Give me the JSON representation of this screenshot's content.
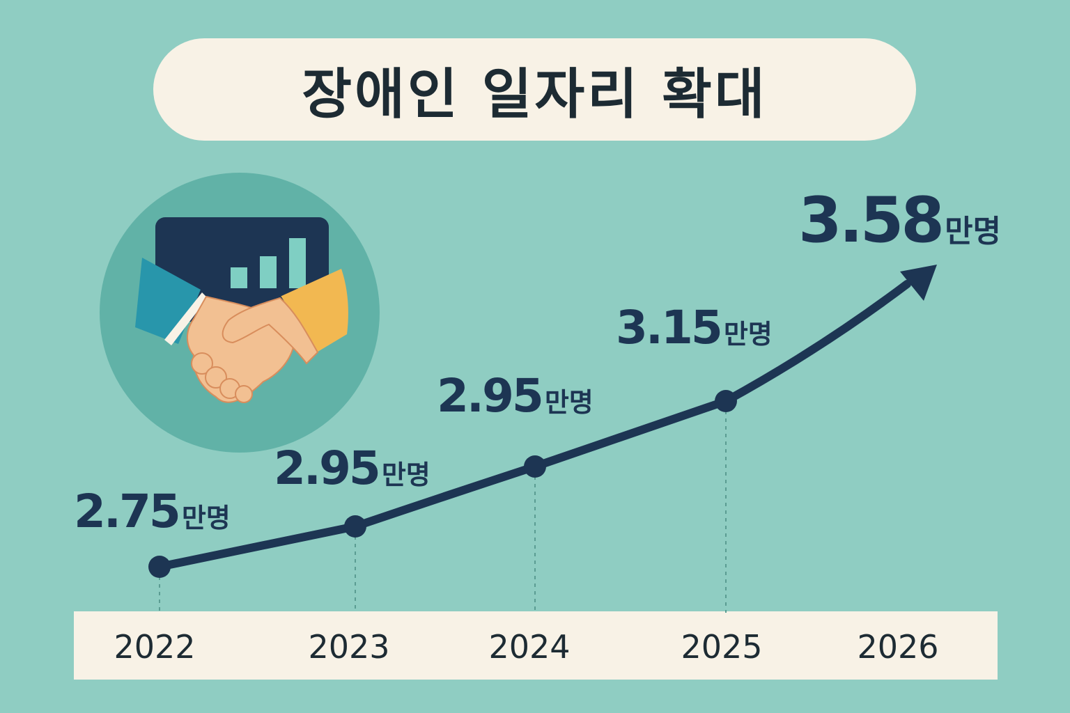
{
  "chart_data": {
    "type": "line",
    "title": "장애인 일자리 확대",
    "categories": [
      "2022",
      "2023",
      "2024",
      "2025",
      "2026"
    ],
    "series": [
      {
        "values": [
          2.75,
          2.95,
          2.95,
          3.15,
          3.58
        ]
      }
    ],
    "data_labels": [
      {
        "number": "2.75",
        "unit": "만명"
      },
      {
        "number": "2.95",
        "unit": "만명"
      },
      {
        "number": "2.95",
        "unit": "만명"
      },
      {
        "number": "3.15",
        "unit": "만명"
      },
      {
        "number": "3.58",
        "unit": "만명"
      }
    ],
    "line_color": "#1d3553",
    "background_color": "#8fcdc2",
    "highlight": "last point shown as arrowhead with larger label",
    "grid": false
  },
  "illustration": {
    "icon": "handshake-icon",
    "chart_icon": "bar-chart-icon"
  }
}
